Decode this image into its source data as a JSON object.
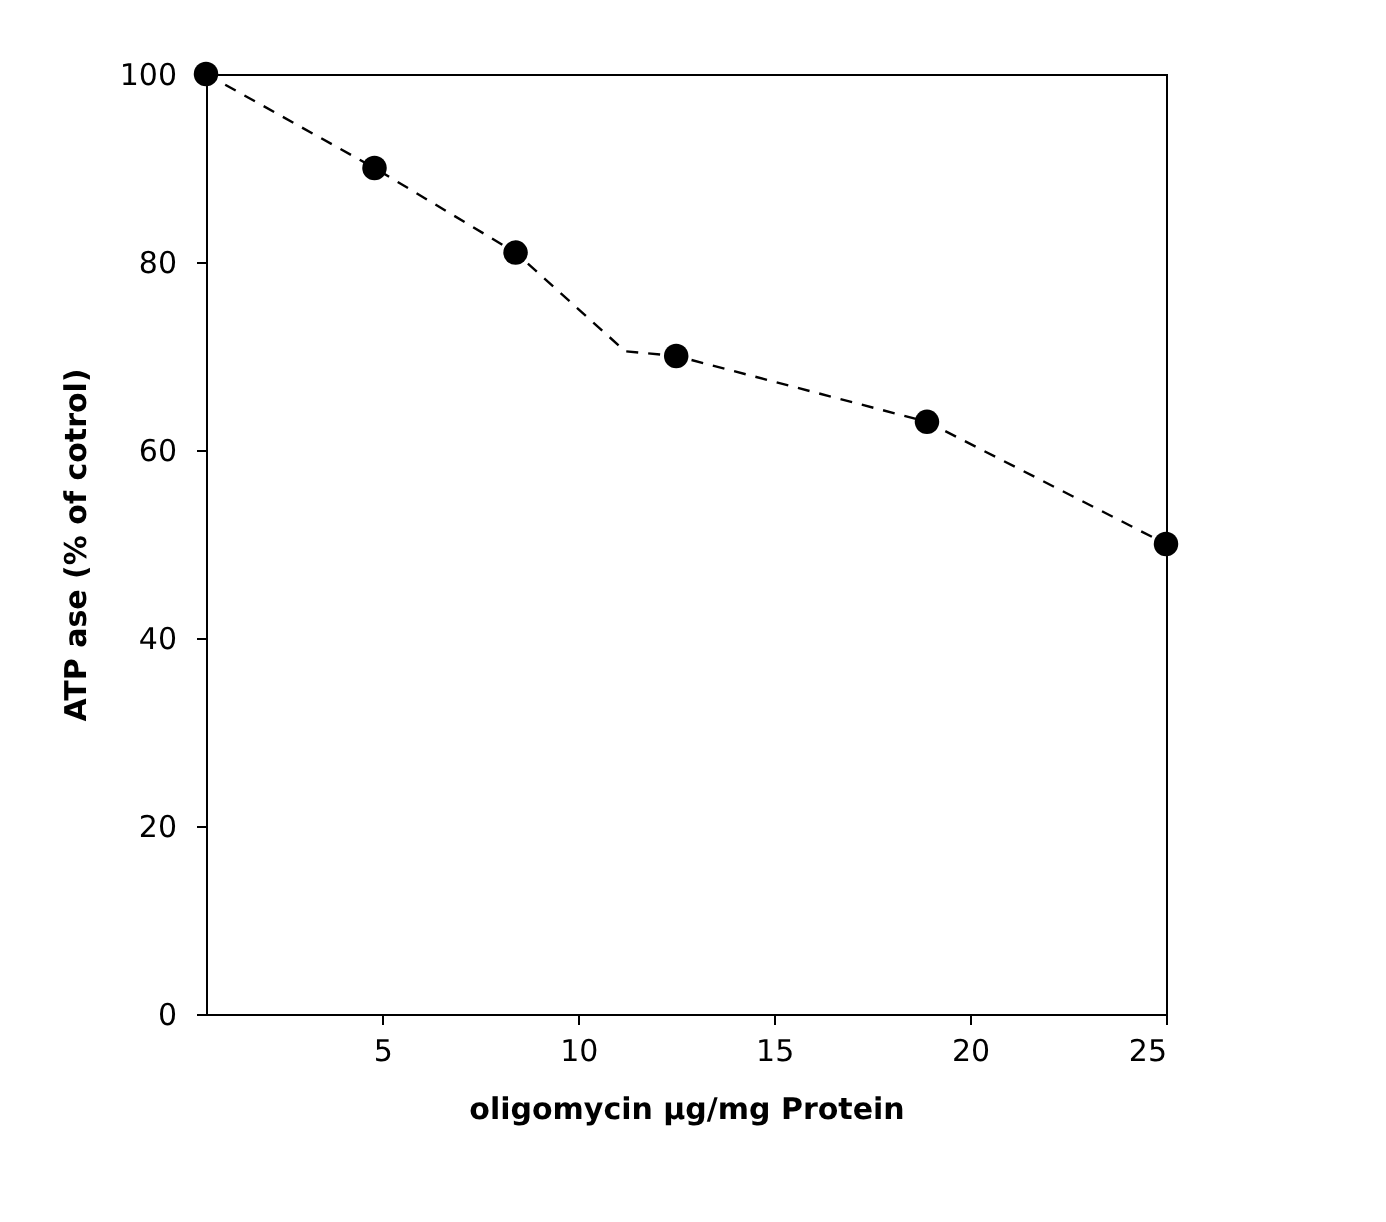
{
  "chart_data": {
    "type": "scatter",
    "xlabel": "oligomycin µg/mg Protein",
    "ylabel": "ATP ase (% of cotrol)",
    "xlim": [
      0.5,
      25
    ],
    "xticks": [
      5,
      10,
      15,
      20,
      25
    ],
    "ylim": [
      0,
      100
    ],
    "yticks": [
      0,
      20,
      40,
      60,
      80,
      100
    ],
    "grid": false,
    "series": [
      {
        "type": "line",
        "color": "#000000",
        "line_style": "dashed",
        "marker": "none",
        "x": [
          0.5,
          4.8,
          8.4,
          11.2,
          12.5,
          18.9,
          25
        ],
        "values": [
          100,
          90,
          81,
          70.5,
          70,
          63,
          50
        ]
      },
      {
        "color": "#000000",
        "marker": "circle",
        "x": [
          0.5,
          4.8,
          8.4,
          12.5,
          18.9,
          25
        ],
        "values": [
          100,
          90,
          81,
          70,
          63,
          50
        ]
      }
    ]
  }
}
